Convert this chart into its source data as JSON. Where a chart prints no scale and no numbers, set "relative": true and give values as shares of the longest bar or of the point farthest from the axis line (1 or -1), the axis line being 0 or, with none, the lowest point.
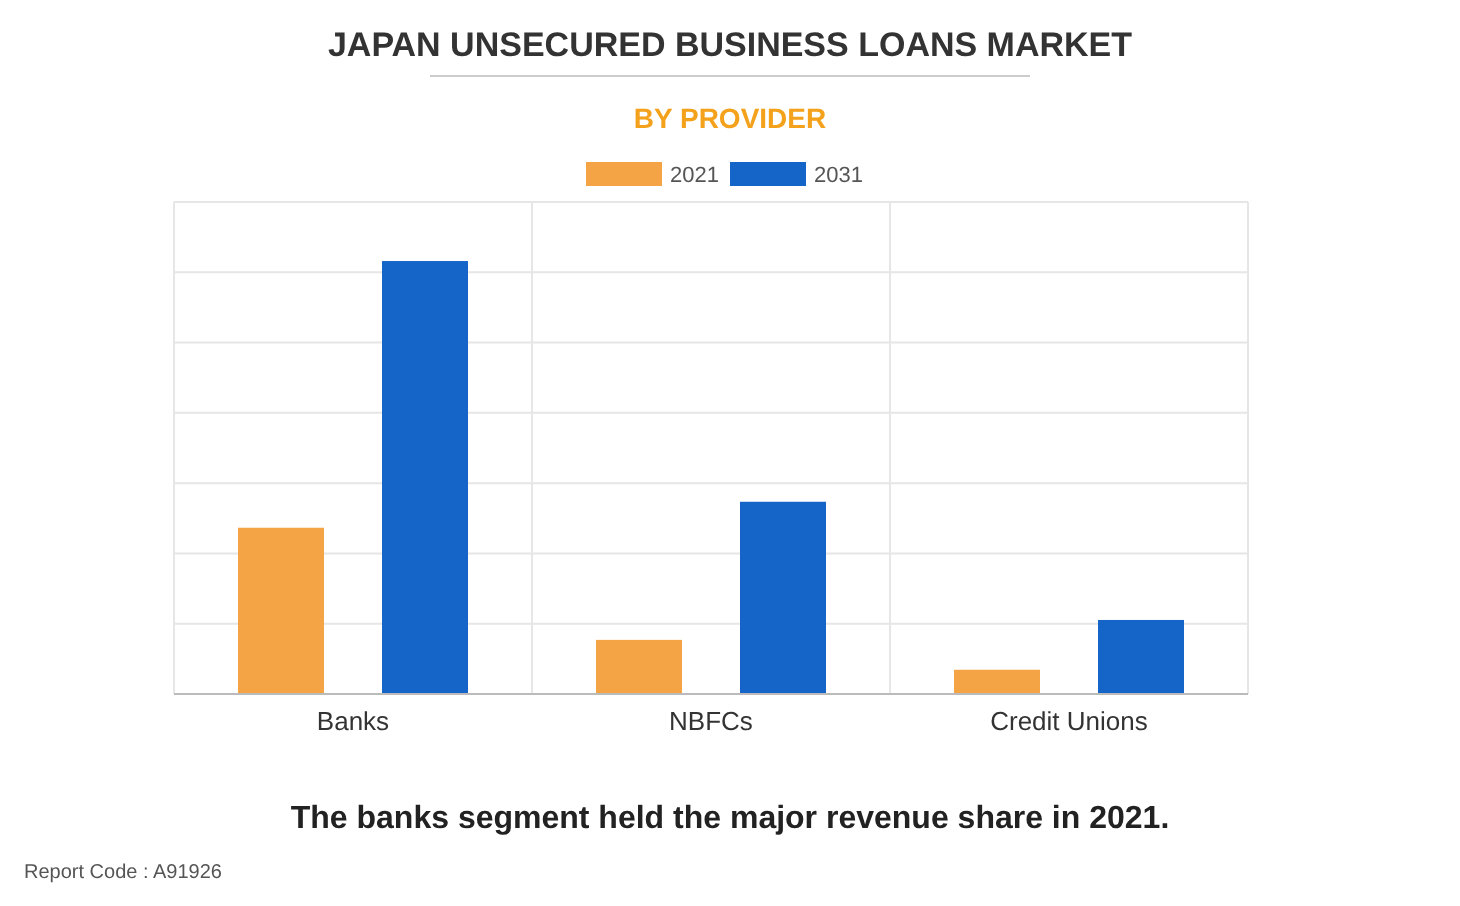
{
  "chart_data": {
    "type": "bar",
    "title": "JAPAN UNSECURED BUSINESS LOANS MARKET",
    "subtitle": "BY PROVIDER",
    "categories": [
      "Banks",
      "NBFCs",
      "Credit Unions"
    ],
    "relative": true,
    "series": [
      {
        "name": "2021",
        "color": "#f4a444",
        "values": [
          0.384,
          0.125,
          0.056
        ]
      },
      {
        "name": "2031",
        "color": "#1565c8",
        "values": [
          1,
          0.444,
          0.171
        ]
      }
    ],
    "grid": true,
    "legend": "top",
    "annotations": [
      "The banks segment held the major revenue share in 2021.",
      "Report Code : A91926"
    ]
  }
}
